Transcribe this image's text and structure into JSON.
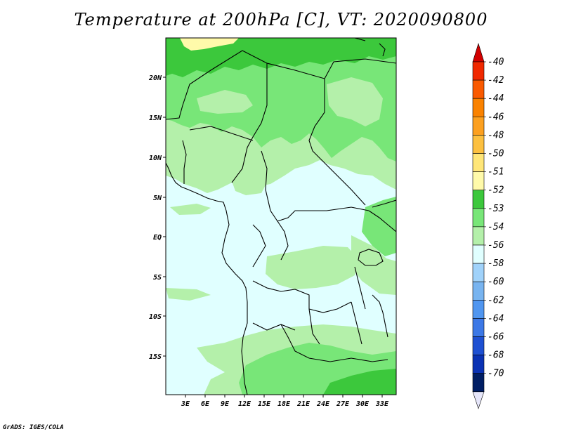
{
  "title": "Temperature at 200hPa [C], VT: 2020090800",
  "credit": "GrADS: IGES/COLA",
  "map": {
    "lat_ticks": [
      "20N",
      "15N",
      "10N",
      "5N",
      "EQ",
      "5S",
      "10S",
      "15S"
    ],
    "lon_ticks": [
      "3E",
      "6E",
      "9E",
      "12E",
      "15E",
      "18E",
      "21E",
      "24E",
      "27E",
      "30E",
      "33E"
    ],
    "fill_colors": {
      "ocean": "#e0ffff",
      "light_green": "#b4f0aa",
      "mid_green": "#78e678",
      "dark_green": "#3cc83c",
      "yellow": "#fffaaa"
    }
  },
  "colorbar": {
    "labels": [
      "-40",
      "-42",
      "-44",
      "-46",
      "-48",
      "-50",
      "-51",
      "-52",
      "-53",
      "-54",
      "-56",
      "-58",
      "-60",
      "-62",
      "-64",
      "-66",
      "-68",
      "-70"
    ],
    "colors": [
      "#f02800",
      "#fa5a00",
      "#fa8200",
      "#fca020",
      "#fcc040",
      "#ffe678",
      "#fffaaa",
      "#3cc83c",
      "#78e678",
      "#b4f0aa",
      "#e0ffff",
      "#a0d2fa",
      "#78b4f0",
      "#5096f0",
      "#3c78e6",
      "#1e50d2",
      "#0a32b4",
      "#001e64"
    ],
    "top_arrow_color": "#d20000",
    "bottom_arrow_color": "#e6e6fa"
  }
}
